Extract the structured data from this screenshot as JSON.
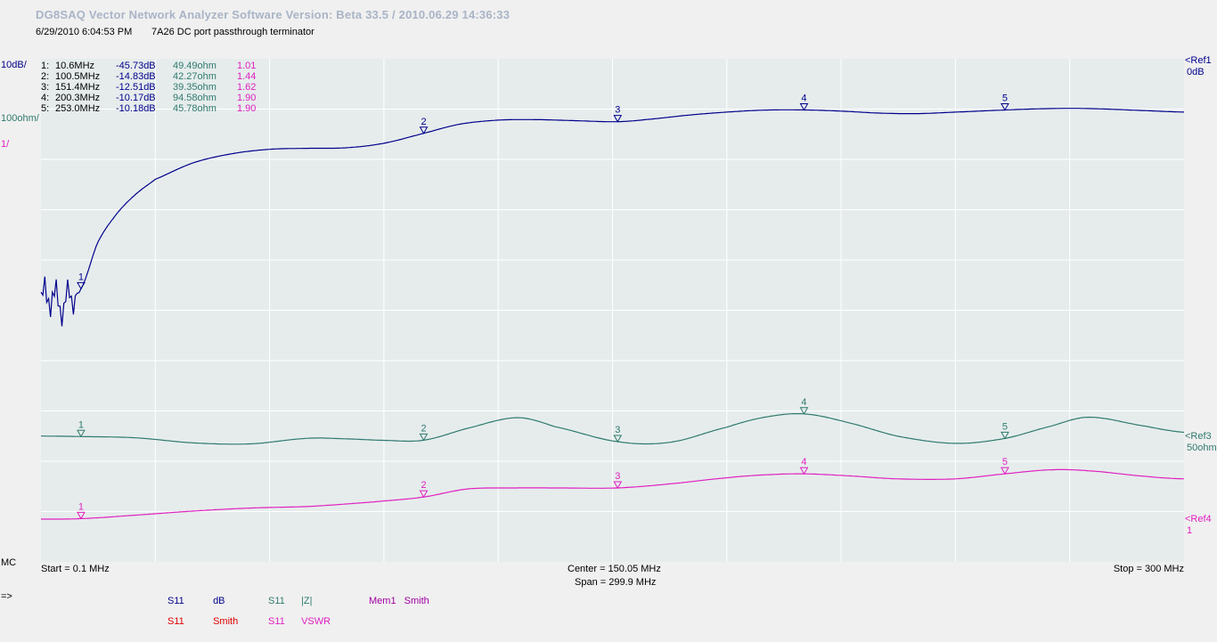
{
  "window": {
    "title": "DG8SAQ Vector Network Analyzer Software   Version:  Beta 33.5 / 2010.06.29 14:36:33",
    "timestamp": "6/29/2010   6:04:53 PM",
    "plot_title": "7A26 DC port passthrough terminator"
  },
  "scales": {
    "left": [
      {
        "text": "10dB/",
        "color": "#00008b"
      },
      {
        "text": "100ohm/",
        "color": "#2f7a6e"
      },
      {
        "text": "1/",
        "color": "#e020c0"
      }
    ],
    "refs": [
      {
        "label": "<Ref1",
        "value": "0dB",
        "color": "#00008b"
      },
      {
        "label": "<Ref3",
        "value": "50ohm",
        "color": "#2f7a6e"
      },
      {
        "label": "<Ref4",
        "value": "1",
        "color": "#e020c0"
      }
    ],
    "mc": "MC"
  },
  "footer": {
    "start": "Start = 0.1 MHz",
    "center": "Center = 150.05 MHz",
    "span": "Span = 299.9 MHz",
    "stop": "Stop = 300 MHz",
    "arrow": "=>"
  },
  "legend": [
    {
      "param": "S11",
      "label": "dB",
      "color": "#00008b"
    },
    {
      "param": "S11",
      "label": "Smith",
      "color": "#e00000"
    },
    {
      "param": "S11",
      "label": "|Z|",
      "color": "#2f7a6e"
    },
    {
      "param": "S11",
      "label": "VSWR",
      "color": "#e020c0"
    },
    {
      "param": "Mem1",
      "label": "Smith",
      "color": "#a000a0"
    }
  ],
  "markers_table": [
    {
      "idx": "1:",
      "freq": "10.6MHz",
      "db": "-45.73dB",
      "ohm": "49.49ohm",
      "vswr": "1.01"
    },
    {
      "idx": "2:",
      "freq": "100.5MHz",
      "db": "-14.83dB",
      "ohm": "42.27ohm",
      "vswr": "1.44"
    },
    {
      "idx": "3:",
      "freq": "151.4MHz",
      "db": "-12.51dB",
      "ohm": "39.35ohm",
      "vswr": "1.62"
    },
    {
      "idx": "4:",
      "freq": "200.3MHz",
      "db": "-10.17dB",
      "ohm": "94.58ohm",
      "vswr": "1.90"
    },
    {
      "idx": "5:",
      "freq": "253.0MHz",
      "db": "-10.18dB",
      "ohm": "45.78ohm",
      "vswr": "1.90"
    }
  ],
  "colors": {
    "db": "#00008b",
    "z": "#2f7a6e",
    "vswr": "#e020c0",
    "plot_bg": "#e6ecec",
    "grid": "#ffffff"
  },
  "chart_data": {
    "type": "line",
    "x_unit": "MHz",
    "xlim": [
      0.1,
      300
    ],
    "marker_frequencies": [
      10.6,
      100.5,
      151.4,
      200.3,
      253.0
    ],
    "series": [
      {
        "name": "S11 dB",
        "color": "#00008b",
        "y_scale": "10dB/div",
        "y_ref": "0dB",
        "x": [
          0.1,
          2,
          4,
          6,
          8,
          10.6,
          15,
          20,
          25,
          30,
          40,
          50,
          60,
          70,
          80,
          90,
          100.5,
          110,
          120,
          130,
          140,
          151.4,
          160,
          170,
          180,
          190,
          200.3,
          210,
          220,
          230,
          240,
          253,
          265,
          275,
          290,
          300
        ],
        "y": [
          -48,
          -47,
          -48,
          -49,
          -47,
          -45.73,
          -36.5,
          -30.8,
          -26.9,
          -24,
          -20.7,
          -18.9,
          -18,
          -17.8,
          -17.7,
          -16.8,
          -14.83,
          -13,
          -12.2,
          -12.1,
          -12.3,
          -12.51,
          -12,
          -11.2,
          -10.6,
          -10.2,
          -10.17,
          -10.4,
          -10.8,
          -10.9,
          -10.6,
          -10.18,
          -9.9,
          -9.9,
          -10.3,
          -10.6
        ]
      },
      {
        "name": "S11 |Z|",
        "color": "#2f7a6e",
        "y_scale": "100ohm/div",
        "y_ref": "50ohm",
        "x": [
          0.1,
          10.6,
          25,
          40,
          55,
          70,
          80,
          90,
          100.5,
          112,
          125,
          135,
          151.4,
          165,
          180,
          190,
          200.3,
          212,
          225,
          240,
          253,
          265,
          275,
          290,
          300
        ],
        "y": [
          50.5,
          49.49,
          47,
          37,
          35,
          46,
          45,
          42,
          42.27,
          66,
          87,
          69,
          39.35,
          38,
          68,
          88,
          94.58,
          77,
          50,
          36,
          45.78,
          70,
          88,
          70,
          58
        ]
      },
      {
        "name": "S11 VSWR",
        "color": "#e020c0",
        "y_scale": "1/div",
        "y_ref": "1",
        "x": [
          0.1,
          10.6,
          25,
          40,
          55,
          70,
          80,
          90,
          100.5,
          112,
          125,
          135,
          151.4,
          165,
          180,
          190,
          200.3,
          212,
          225,
          240,
          253,
          265,
          275,
          290,
          300
        ],
        "y": [
          1.0,
          1.01,
          1.08,
          1.16,
          1.22,
          1.25,
          1.3,
          1.36,
          1.44,
          1.6,
          1.62,
          1.62,
          1.62,
          1.7,
          1.82,
          1.88,
          1.9,
          1.86,
          1.8,
          1.8,
          1.9,
          1.98,
          1.96,
          1.85,
          1.8
        ]
      }
    ]
  }
}
